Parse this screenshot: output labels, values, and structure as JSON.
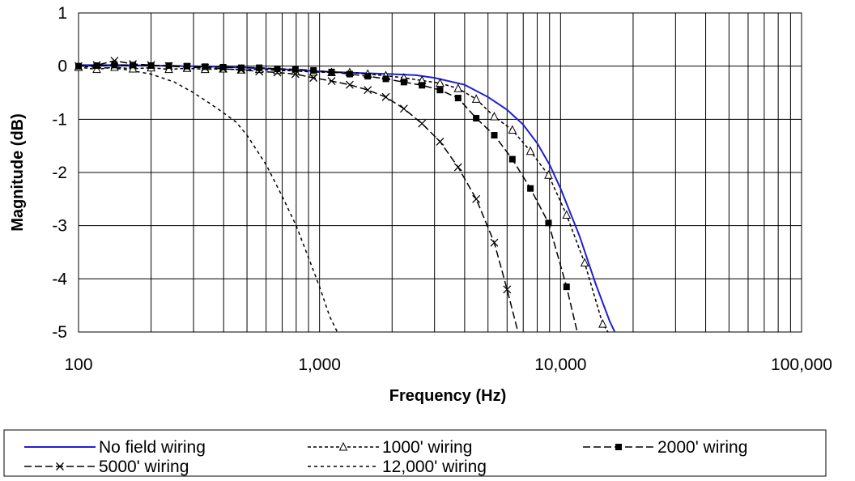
{
  "chart_data": {
    "type": "line",
    "xlabel": "Frequency (Hz)",
    "ylabel": "Magnitude (dB)",
    "x_scale": "log",
    "xlim": [
      100,
      100000
    ],
    "ylim": [
      -5,
      1
    ],
    "grid": true,
    "legend_position": "bottom",
    "x_ticks": [
      100,
      1000,
      10000,
      100000
    ],
    "x_tick_labels": [
      "100",
      "1,000",
      "10,000",
      "100,000"
    ],
    "y_ticks": [
      1,
      0,
      -1,
      -2,
      -3,
      -4,
      -5
    ],
    "y_tick_labels": [
      "1",
      "0",
      "-1",
      "-2",
      "-3",
      "-4",
      "-5"
    ],
    "series": [
      {
        "name": "No field wiring",
        "color": "#1f1fd0",
        "style": "solid",
        "marker": "none",
        "x": [
          100,
          150,
          300,
          500,
          800,
          1000,
          1500,
          2000,
          2500,
          3000,
          4000,
          5000,
          6000,
          7000,
          8000,
          9000,
          10000,
          12000,
          14000,
          16000,
          17000
        ],
        "y": [
          0.02,
          0.02,
          0.0,
          -0.03,
          -0.07,
          -0.1,
          -0.13,
          -0.15,
          -0.17,
          -0.22,
          -0.35,
          -0.58,
          -0.82,
          -1.1,
          -1.45,
          -1.85,
          -2.3,
          -3.2,
          -4.1,
          -4.8,
          -5.05
        ]
      },
      {
        "name": "1000' wiring",
        "color": "#000000",
        "style": "dashed",
        "marker": "triangle",
        "x": [
          100,
          119,
          141,
          168,
          200,
          237,
          282,
          335,
          398,
          473,
          562,
          668,
          794,
          944,
          1122,
          1334,
          1585,
          1884,
          2239,
          2661,
          3162,
          3758,
          4467,
          5309,
          6310,
          7499,
          8913,
          10593,
          12589,
          14962,
          16000
        ],
        "y": [
          -0.02,
          -0.06,
          -0.02,
          -0.05,
          -0.03,
          -0.06,
          -0.04,
          -0.06,
          -0.05,
          -0.07,
          -0.06,
          -0.08,
          -0.09,
          -0.11,
          -0.12,
          -0.12,
          -0.15,
          -0.18,
          -0.22,
          -0.27,
          -0.32,
          -0.42,
          -0.62,
          -0.95,
          -1.2,
          -1.6,
          -2.05,
          -2.8,
          -3.7,
          -4.85,
          -5.05
        ]
      },
      {
        "name": "2000' wiring",
        "color": "#000000",
        "style": "longdash",
        "marker": "square",
        "x": [
          100,
          119,
          141,
          168,
          200,
          237,
          282,
          335,
          398,
          473,
          562,
          668,
          794,
          944,
          1122,
          1334,
          1585,
          1884,
          2239,
          2661,
          3162,
          3758,
          4467,
          5309,
          6310,
          7499,
          8913,
          10593,
          11800
        ],
        "y": [
          0.0,
          0.01,
          0.02,
          0.02,
          0.01,
          0.01,
          0.0,
          -0.01,
          -0.02,
          -0.03,
          -0.03,
          -0.05,
          -0.06,
          -0.08,
          -0.11,
          -0.15,
          -0.19,
          -0.24,
          -0.3,
          -0.36,
          -0.45,
          -0.6,
          -0.98,
          -1.3,
          -1.75,
          -2.3,
          -2.95,
          -4.15,
          -5.05
        ]
      },
      {
        "name": "5000' wiring",
        "color": "#000000",
        "style": "longdash",
        "marker": "x",
        "x": [
          100,
          119,
          141,
          168,
          200,
          237,
          282,
          335,
          398,
          473,
          562,
          668,
          794,
          944,
          1122,
          1334,
          1585,
          1884,
          2239,
          2661,
          3162,
          3758,
          4467,
          5309,
          6000,
          6700
        ],
        "y": [
          0.0,
          0.02,
          0.1,
          0.04,
          0.02,
          0.0,
          -0.02,
          -0.03,
          -0.05,
          -0.07,
          -0.1,
          -0.12,
          -0.15,
          -0.22,
          -0.28,
          -0.35,
          -0.45,
          -0.58,
          -0.8,
          -1.08,
          -1.42,
          -1.9,
          -2.5,
          -3.32,
          -4.2,
          -5.05
        ]
      },
      {
        "name": "12,000' wiring",
        "color": "#000000",
        "style": "shortdash",
        "marker": "none",
        "x": [
          100,
          150,
          200,
          250,
          300,
          350,
          400,
          450,
          500,
          600,
          700,
          800,
          900,
          1000,
          1100,
          1200
        ],
        "y": [
          0.0,
          -0.05,
          -0.15,
          -0.3,
          -0.5,
          -0.7,
          -0.88,
          -1.05,
          -1.3,
          -1.85,
          -2.45,
          -3.0,
          -3.6,
          -4.15,
          -4.7,
          -5.05
        ]
      }
    ]
  }
}
